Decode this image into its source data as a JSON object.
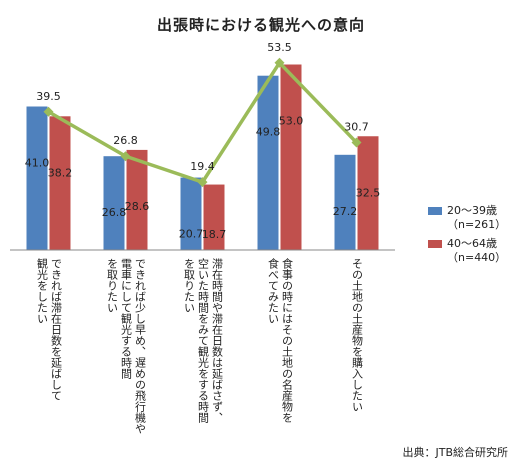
{
  "chart_data": {
    "type": "bar",
    "title": "出張時における観光への意向",
    "categories": [
      [
        "できれば滞在日数を延ばして",
        "観光をしたい"
      ],
      [
        "できれば少し早め、遅めの飛行機や",
        "電車にして観光する時間",
        "を取りたい"
      ],
      [
        "滞在時間や滞在日数は延ばさず、",
        "空いた時間をみて観光をする時間",
        "を取りたい"
      ],
      [
        "食事の時にはその土地の名産物を",
        "食べてみたい"
      ],
      [
        "その土地の土産物を購入したい"
      ]
    ],
    "series": [
      {
        "name": "20〜39歳",
        "n": "（n=261）",
        "values": [
          41.0,
          26.8,
          20.7,
          49.8,
          27.2
        ],
        "color": "#4f81bd"
      },
      {
        "name": "40〜64歳",
        "n": "（n=440）",
        "values": [
          38.2,
          28.6,
          18.7,
          53.0,
          32.5
        ],
        "color": "#c0504d"
      }
    ],
    "line": {
      "values": [
        39.5,
        26.8,
        19.4,
        53.5,
        30.7
      ],
      "color": "#9bbb59"
    },
    "ylim": [
      0,
      60
    ],
    "grid": false,
    "legend_position": "right",
    "source": "出典：JTB総合研究所"
  }
}
